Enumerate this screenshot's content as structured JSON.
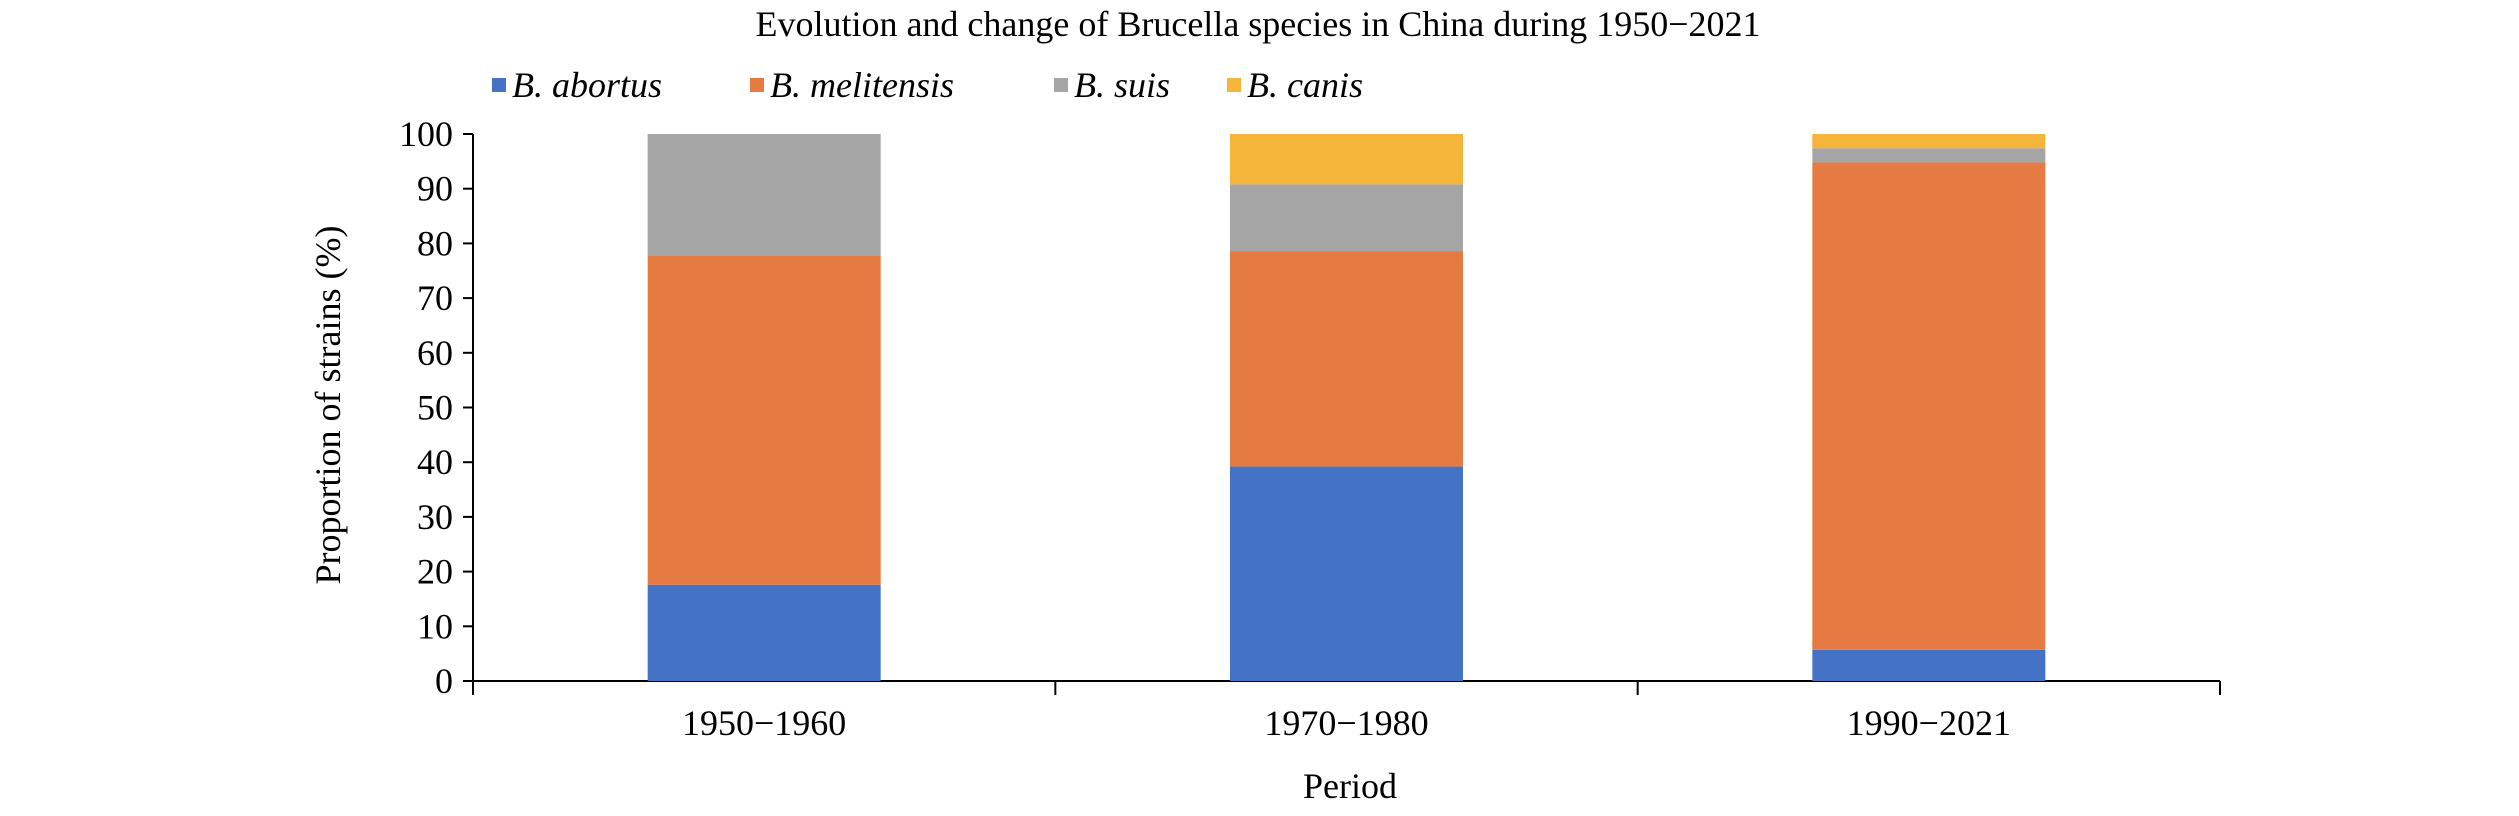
{
  "chart_data": {
    "type": "bar",
    "stacked": true,
    "title": "Evolution and change of Brucella species in China during 1950−2021",
    "xlabel": "Period",
    "ylabel": "Proportion of strains (%)",
    "ylim": [
      0,
      100
    ],
    "yticks": [
      "0",
      "10",
      "20",
      "30",
      "40",
      "50",
      "60",
      "70",
      "80",
      "90",
      "100"
    ],
    "categories": [
      "1950−1960",
      "1970−1980",
      "1990−2021"
    ],
    "legend_position": "top",
    "grid": false,
    "series": [
      {
        "name": "B. abortus",
        "color": "#4472C4",
        "values": [
          17.6,
          39.2,
          5.7
        ]
      },
      {
        "name": "B. melitensis",
        "color": "#E67A43",
        "values": [
          60.1,
          39.4,
          89.1
        ]
      },
      {
        "name": "B. suis",
        "color": "#A5A5A5",
        "values": [
          22.3,
          12.2,
          2.6
        ]
      },
      {
        "name": "B. canis",
        "color": "#F4B53A",
        "values": [
          0,
          9.2,
          2.6
        ]
      }
    ]
  }
}
